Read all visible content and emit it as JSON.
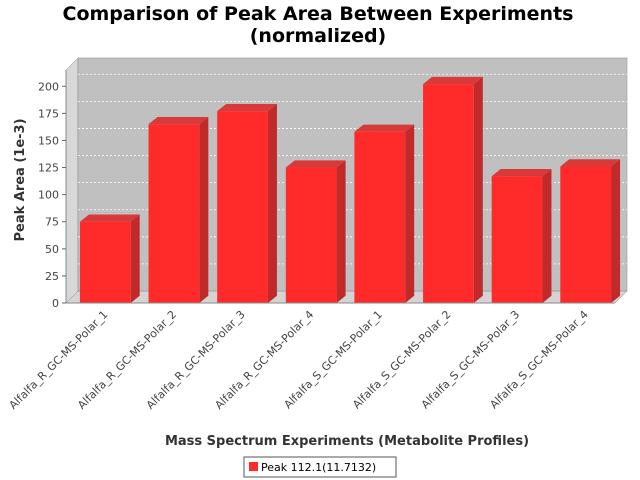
{
  "chart_data": {
    "type": "bar",
    "title": "Comparison of Peak Area Between Experiments",
    "subtitle": "(normalized)",
    "xlabel": "Mass Spectrum Experiments (Metabolite Profiles)",
    "ylabel": "Peak Area (1e-3)",
    "ylim": [
      0,
      215
    ],
    "yticks": [
      0,
      25,
      50,
      75,
      100,
      125,
      150,
      175,
      200
    ],
    "grid": true,
    "legend_position": "bottom",
    "categories": [
      "Alfalfa_R_GC-MS-Polar_1",
      "Alfalfa_R_GC-MS-Polar_2",
      "Alfalfa_R_GC-MS-Polar_3",
      "Alfalfa_R_GC-MS-Polar_4",
      "Alfalfa_S_GC-MS-Polar_1",
      "Alfalfa_S_GC-MS-Polar_2",
      "Alfalfa_S_GC-MS-Polar_3",
      "Alfalfa_S_GC-MS-Polar_4"
    ],
    "series": [
      {
        "name": "Peak 112.1(11.7132)",
        "color": "#ff2a2a",
        "values": [
          75,
          165,
          177,
          125,
          158,
          202,
          117,
          126
        ]
      }
    ]
  }
}
